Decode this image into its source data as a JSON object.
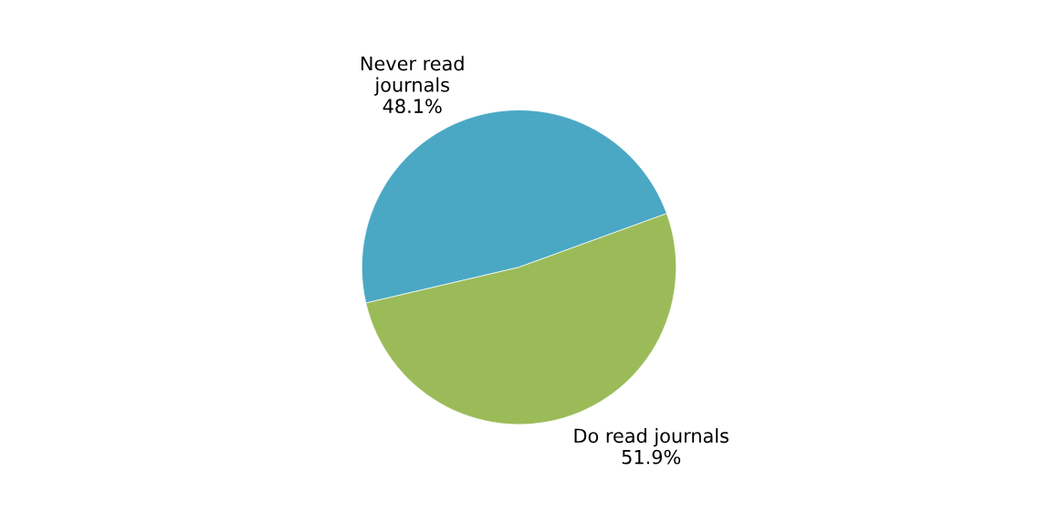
{
  "chart_data": {
    "type": "pie",
    "categories": [
      "Never read\njournals",
      "Do read journals"
    ],
    "values": [
      48.1,
      51.9
    ],
    "value_labels": [
      "48.1%",
      "51.9%"
    ],
    "colors": [
      "#4aa8c4",
      "#9bbb59"
    ]
  }
}
